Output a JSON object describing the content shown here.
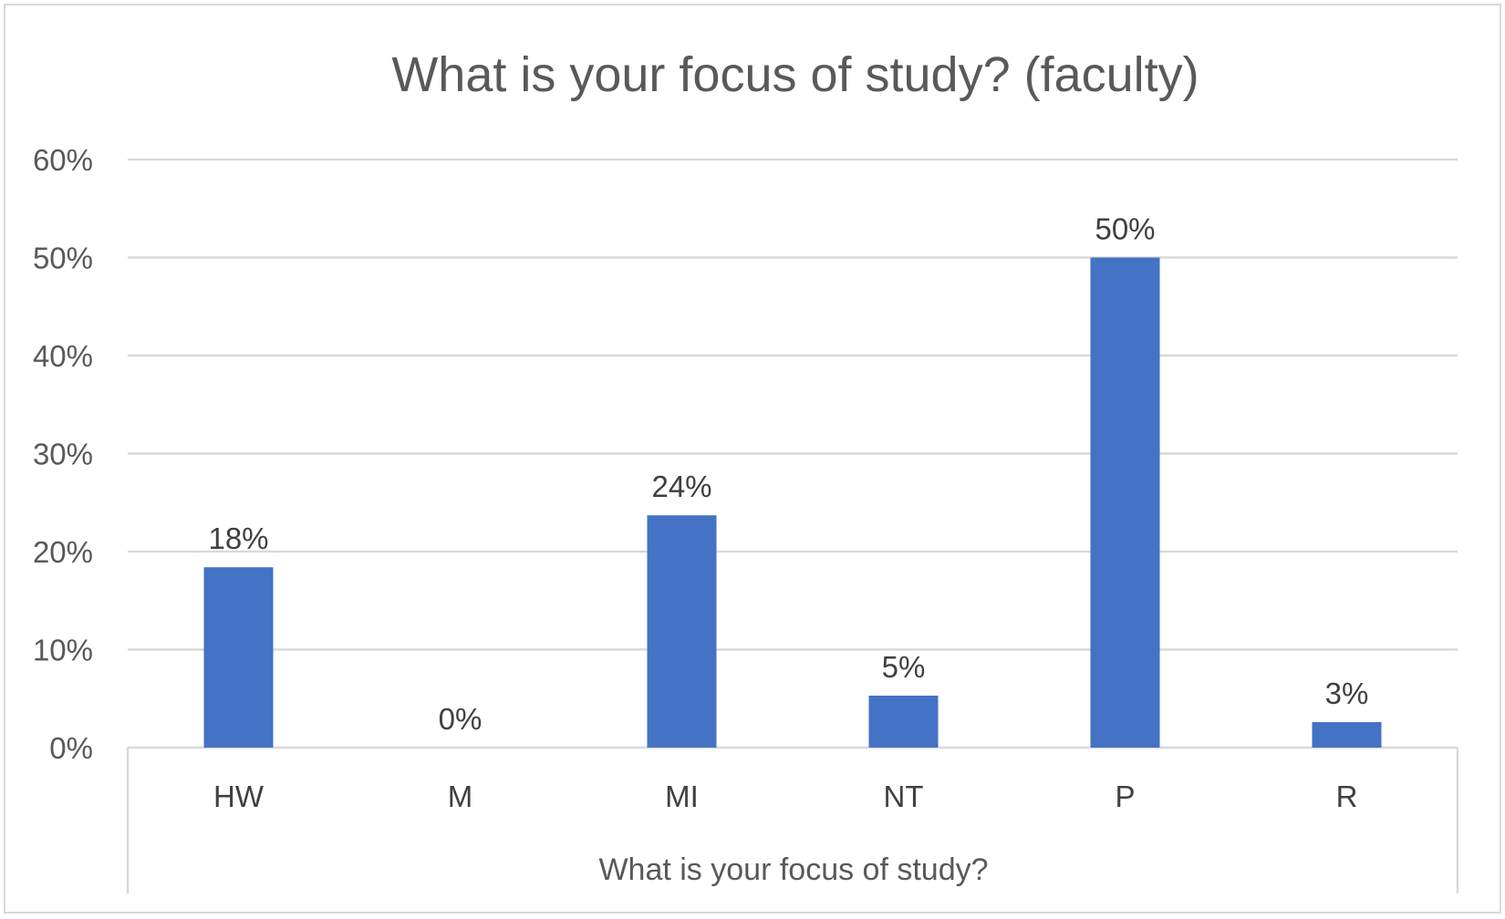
{
  "chart_data": {
    "type": "bar",
    "title": "What is your focus of study? (faculty)",
    "xlabel": "What is your focus of study?",
    "ylabel": "",
    "categories": [
      "HW",
      "M",
      "MI",
      "NT",
      "P",
      "R"
    ],
    "values": [
      0.184,
      0,
      0.237,
      0.053,
      0.5,
      0.026
    ],
    "data_labels": [
      "18%",
      "0%",
      "24%",
      "5%",
      "50%",
      "3%"
    ],
    "ylim": [
      0,
      0.6
    ],
    "yticks": [
      0,
      0.1,
      0.2,
      0.3,
      0.4,
      0.5,
      0.6
    ],
    "ytick_labels": [
      "0%",
      "10%",
      "20%",
      "30%",
      "40%",
      "50%",
      "60%"
    ],
    "grid": true,
    "legend": "none",
    "colors": {
      "bar": "#4472c4",
      "grid": "#d9d9d9",
      "text": "#595959"
    }
  }
}
